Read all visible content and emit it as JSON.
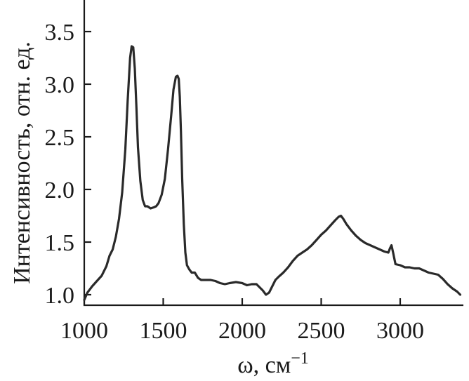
{
  "chart_data": {
    "type": "line",
    "title": "",
    "xlabel": "ω, см",
    "xlabel_superscript": "−1",
    "ylabel": "Интенсивность, отн. ед.",
    "xlim": [
      1000,
      3400
    ],
    "ylim": [
      0.9,
      3.8
    ],
    "x_ticks": [
      {
        "value": 1000,
        "label": "1000"
      },
      {
        "value": 1500,
        "label": "1500"
      },
      {
        "value": 2000,
        "label": "2000"
      },
      {
        "value": 2500,
        "label": "2500"
      },
      {
        "value": 3000,
        "label": "3000"
      }
    ],
    "y_ticks": [
      {
        "value": 1.0,
        "label": "1.0"
      },
      {
        "value": 1.5,
        "label": "1.5"
      },
      {
        "value": 2.0,
        "label": "2.0"
      },
      {
        "value": 2.5,
        "label": "2.5"
      },
      {
        "value": 3.0,
        "label": "3.0"
      },
      {
        "value": 3.5,
        "label": "3.5"
      }
    ],
    "grid": false,
    "line_color": "#2a2a2a",
    "series": [
      {
        "x": [
          1000,
          1020,
          1050,
          1080,
          1110,
          1140,
          1160,
          1180,
          1200,
          1220,
          1240,
          1260,
          1275,
          1290,
          1300,
          1310,
          1320,
          1330,
          1340,
          1355,
          1370,
          1385,
          1400,
          1420,
          1440,
          1455,
          1470,
          1490,
          1510,
          1530,
          1550,
          1565,
          1580,
          1590,
          1598,
          1605,
          1612,
          1620,
          1630,
          1640,
          1650,
          1665,
          1680,
          1700,
          1720,
          1740,
          1770,
          1800,
          1830,
          1860,
          1890,
          1920,
          1960,
          2000,
          2030,
          2060,
          2090,
          2110,
          2130,
          2150,
          2170,
          2190,
          2210,
          2230,
          2260,
          2290,
          2320,
          2350,
          2380,
          2410,
          2440,
          2470,
          2500,
          2530,
          2560,
          2590,
          2610,
          2625,
          2640,
          2660,
          2690,
          2720,
          2750,
          2780,
          2810,
          2840,
          2870,
          2900,
          2925,
          2935,
          2945,
          2955,
          2970,
          3000,
          3030,
          3060,
          3090,
          3120,
          3150,
          3180,
          3210,
          3240,
          3270,
          3300,
          3330,
          3360,
          3380
        ],
        "y": [
          0.95,
          1.02,
          1.08,
          1.13,
          1.18,
          1.27,
          1.37,
          1.43,
          1.55,
          1.72,
          1.97,
          2.38,
          2.85,
          3.25,
          3.36,
          3.35,
          3.15,
          2.78,
          2.4,
          2.08,
          1.9,
          1.84,
          1.84,
          1.82,
          1.83,
          1.84,
          1.87,
          1.95,
          2.1,
          2.38,
          2.7,
          2.95,
          3.07,
          3.08,
          3.05,
          2.88,
          2.55,
          2.1,
          1.67,
          1.4,
          1.28,
          1.24,
          1.21,
          1.21,
          1.16,
          1.14,
          1.14,
          1.14,
          1.13,
          1.11,
          1.1,
          1.11,
          1.12,
          1.11,
          1.09,
          1.1,
          1.1,
          1.07,
          1.04,
          1.0,
          1.02,
          1.08,
          1.14,
          1.17,
          1.21,
          1.26,
          1.32,
          1.37,
          1.4,
          1.43,
          1.47,
          1.52,
          1.57,
          1.61,
          1.66,
          1.71,
          1.74,
          1.75,
          1.72,
          1.67,
          1.61,
          1.56,
          1.52,
          1.49,
          1.47,
          1.45,
          1.43,
          1.41,
          1.4,
          1.44,
          1.47,
          1.4,
          1.29,
          1.28,
          1.26,
          1.26,
          1.25,
          1.25,
          1.23,
          1.21,
          1.2,
          1.19,
          1.15,
          1.1,
          1.06,
          1.03,
          1.0
        ]
      }
    ]
  }
}
